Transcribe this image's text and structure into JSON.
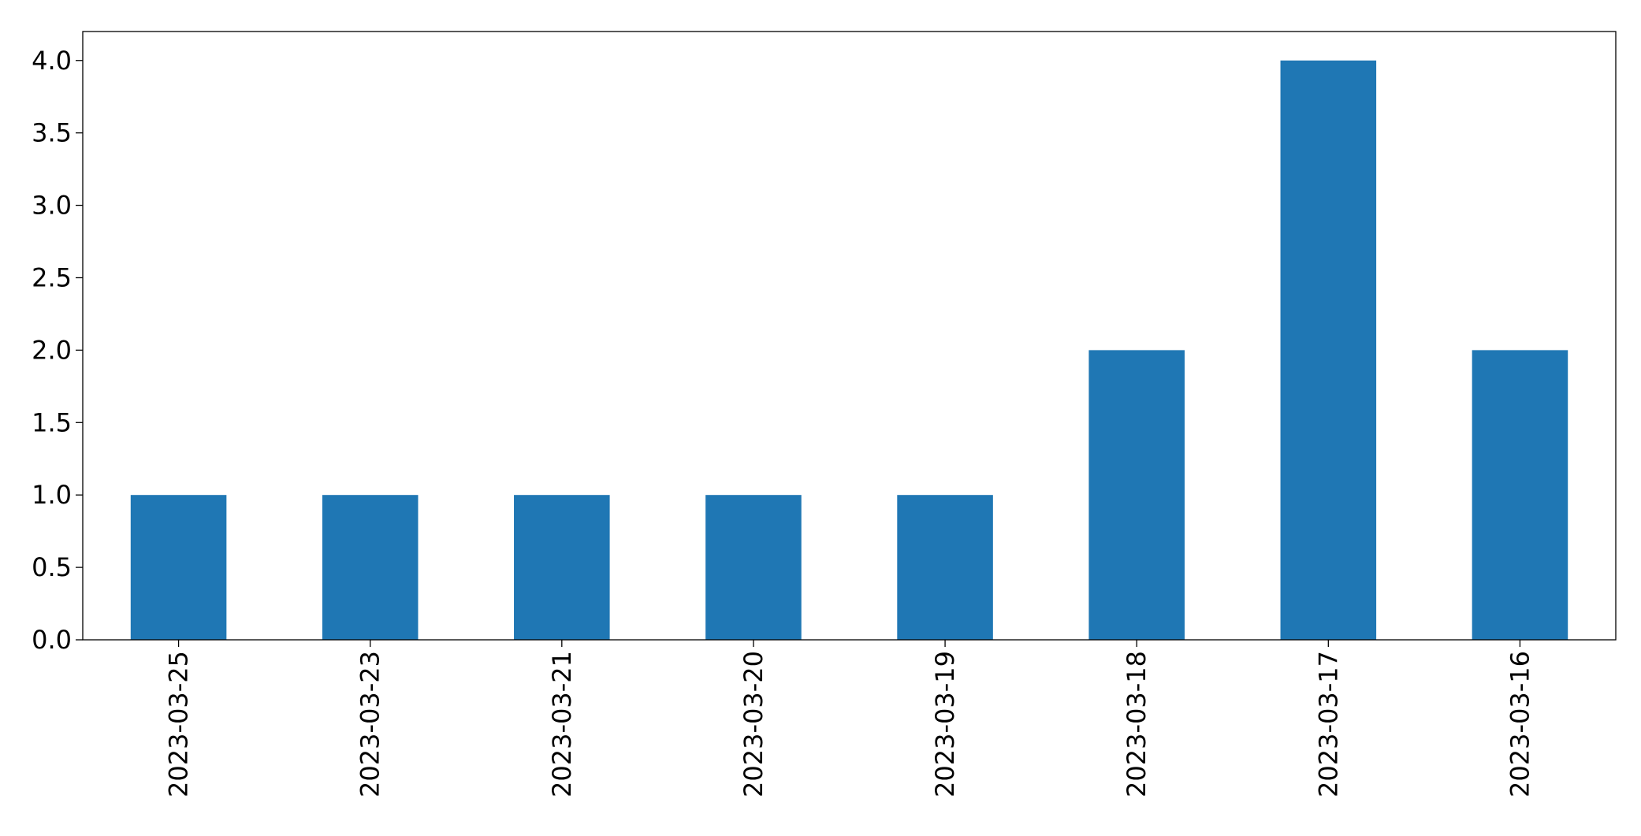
{
  "chart_data": {
    "type": "bar",
    "title": "",
    "xlabel": "",
    "ylabel": "",
    "categories": [
      "2023-03-25",
      "2023-03-23",
      "2023-03-21",
      "2023-03-20",
      "2023-03-19",
      "2023-03-18",
      "2023-03-17",
      "2023-03-16"
    ],
    "values": [
      1,
      1,
      1,
      1,
      1,
      2,
      4,
      2
    ],
    "ylim": [
      0,
      4.2
    ],
    "yticks": [
      "0.0",
      "0.5",
      "1.0",
      "1.5",
      "2.0",
      "2.5",
      "3.0",
      "3.5",
      "4.0"
    ],
    "grid": false,
    "legend": "none",
    "x_tick_rotation": "vertical",
    "bar_color": "#1f77b4"
  }
}
